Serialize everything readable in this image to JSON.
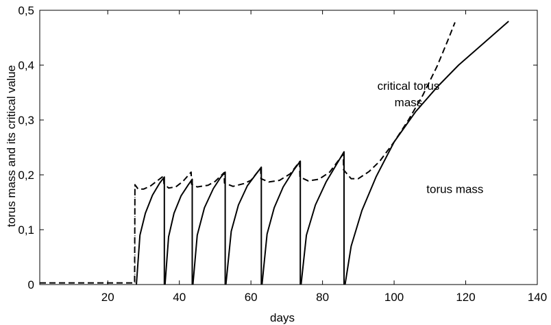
{
  "chart_data": {
    "type": "line",
    "title": "",
    "xlabel": "days",
    "ylabel": "torus mass and its critical value",
    "xlim": [
      1,
      140
    ],
    "ylim": [
      0,
      0.5
    ],
    "x_ticks": [
      20,
      40,
      60,
      80,
      100,
      120,
      140
    ],
    "x_tick_labels": [
      "20",
      "40",
      "60",
      "80",
      "100",
      "120",
      "140"
    ],
    "y_ticks": [
      0,
      0.1,
      0.2,
      0.3,
      0.4,
      0.5
    ],
    "y_tick_labels": [
      "0",
      "0,1",
      "0,2",
      "0,3",
      "0,4",
      "0,5"
    ],
    "grid": false,
    "series": [
      {
        "name": "critical torus mass",
        "style": "dashed",
        "points": [
          [
            1,
            0.003
          ],
          [
            27.5,
            0.003
          ],
          [
            27.6,
            0.182
          ],
          [
            28.5,
            0.174
          ],
          [
            30,
            0.174
          ],
          [
            32,
            0.18
          ],
          [
            34,
            0.19
          ],
          [
            35.6,
            0.198
          ],
          [
            35.7,
            0.184
          ],
          [
            37,
            0.176
          ],
          [
            39,
            0.178
          ],
          [
            41,
            0.188
          ],
          [
            43.3,
            0.205
          ],
          [
            43.4,
            0.183
          ],
          [
            45,
            0.178
          ],
          [
            48,
            0.181
          ],
          [
            50,
            0.188
          ],
          [
            52.5,
            0.204
          ],
          [
            52.6,
            0.185
          ],
          [
            55,
            0.179
          ],
          [
            58,
            0.184
          ],
          [
            60,
            0.19
          ],
          [
            62.7,
            0.212
          ],
          [
            62.8,
            0.193
          ],
          [
            65,
            0.187
          ],
          [
            68,
            0.19
          ],
          [
            71,
            0.202
          ],
          [
            73.6,
            0.224
          ],
          [
            73.7,
            0.196
          ],
          [
            76,
            0.189
          ],
          [
            79,
            0.192
          ],
          [
            82,
            0.205
          ],
          [
            85.8,
            0.238
          ],
          [
            85.9,
            0.209
          ],
          [
            88,
            0.193
          ],
          [
            90,
            0.193
          ],
          [
            93,
            0.206
          ],
          [
            96,
            0.225
          ],
          [
            100,
            0.26
          ],
          [
            104,
            0.3
          ],
          [
            108,
            0.345
          ],
          [
            112,
            0.398
          ],
          [
            115,
            0.445
          ],
          [
            117,
            0.478
          ]
        ]
      },
      {
        "name": "torus mass",
        "style": "solid",
        "segments": [
          [
            [
              28,
              0
            ],
            [
              29,
              0.09
            ],
            [
              30.5,
              0.13
            ],
            [
              32.5,
              0.163
            ],
            [
              34.5,
              0.185
            ],
            [
              35.8,
              0.196
            ],
            [
              35.8,
              0
            ]
          ],
          [
            [
              36,
              0
            ],
            [
              37,
              0.087
            ],
            [
              38.5,
              0.13
            ],
            [
              40.5,
              0.162
            ],
            [
              42.5,
              0.182
            ],
            [
              43.6,
              0.192
            ],
            [
              43.6,
              0
            ]
          ],
          [
            [
              43.8,
              0
            ],
            [
              45,
              0.09
            ],
            [
              47,
              0.14
            ],
            [
              49.5,
              0.175
            ],
            [
              51.5,
              0.195
            ],
            [
              52.8,
              0.205
            ],
            [
              52.8,
              0
            ]
          ],
          [
            [
              53,
              0
            ],
            [
              54.5,
              0.097
            ],
            [
              56.5,
              0.145
            ],
            [
              59,
              0.18
            ],
            [
              61.5,
              0.202
            ],
            [
              62.9,
              0.214
            ],
            [
              62.9,
              0
            ]
          ],
          [
            [
              63.1,
              0
            ],
            [
              64.5,
              0.092
            ],
            [
              66.5,
              0.14
            ],
            [
              69,
              0.178
            ],
            [
              72,
              0.209
            ],
            [
              73.8,
              0.225
            ],
            [
              73.8,
              0
            ]
          ],
          [
            [
              74,
              0
            ],
            [
              75.5,
              0.09
            ],
            [
              78,
              0.145
            ],
            [
              81,
              0.187
            ],
            [
              84,
              0.22
            ],
            [
              86,
              0.242
            ],
            [
              86,
              0
            ]
          ],
          [
            [
              86.3,
              0
            ],
            [
              88,
              0.07
            ],
            [
              91,
              0.135
            ],
            [
              95,
              0.197
            ],
            [
              100,
              0.26
            ],
            [
              106,
              0.315
            ],
            [
              112,
              0.36
            ],
            [
              118,
              0.4
            ],
            [
              125,
              0.44
            ],
            [
              132,
              0.48
            ]
          ]
        ]
      },
      {
        "name": "",
        "style": "dotted",
        "points": [
          [
            27.6,
            0.003
          ],
          [
            27.6,
            0.182
          ]
        ]
      }
    ],
    "annotations": [
      {
        "text": "critical torus",
        "x": 104,
        "y": 0.355
      },
      {
        "text": "mass",
        "x": 104,
        "y": 0.325
      },
      {
        "text": "torus mass",
        "x": 117,
        "y": 0.167
      }
    ]
  }
}
